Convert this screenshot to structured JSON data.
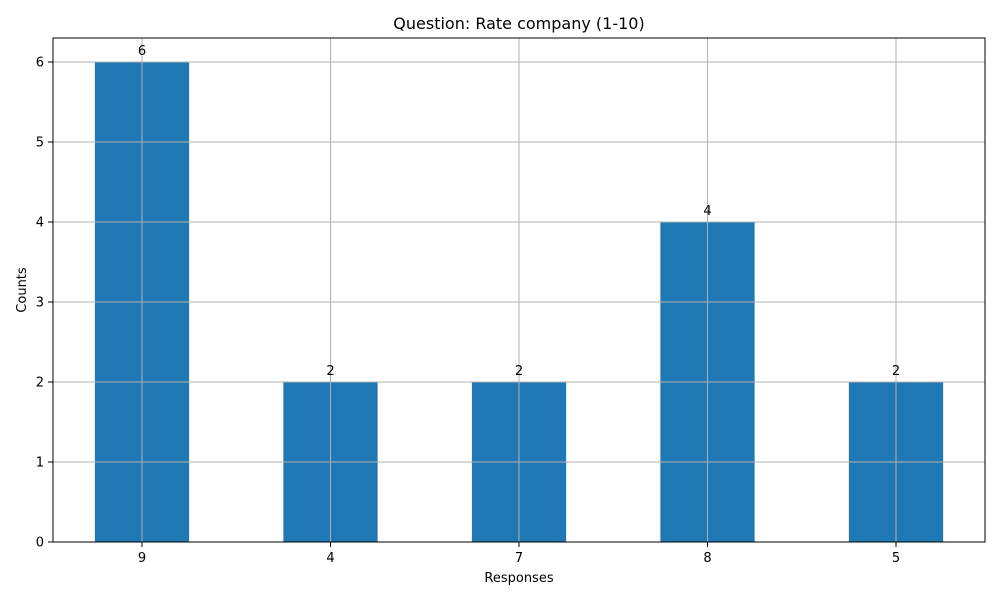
{
  "chart_data": {
    "type": "bar",
    "title": "Question: Rate company (1-10)",
    "xlabel": "Responses",
    "ylabel": "Counts",
    "categories": [
      "9",
      "4",
      "7",
      "8",
      "5"
    ],
    "values": [
      6,
      2,
      2,
      4,
      2
    ],
    "data_labels": [
      "6",
      "2",
      "2",
      "4",
      "2"
    ],
    "ylim": [
      0,
      6.3
    ],
    "yticks": [
      0,
      1,
      2,
      3,
      4,
      5,
      6
    ],
    "grid": true,
    "bar_color": "#1f77b4",
    "grid_color": "#b0b0b0",
    "legend": "none"
  }
}
